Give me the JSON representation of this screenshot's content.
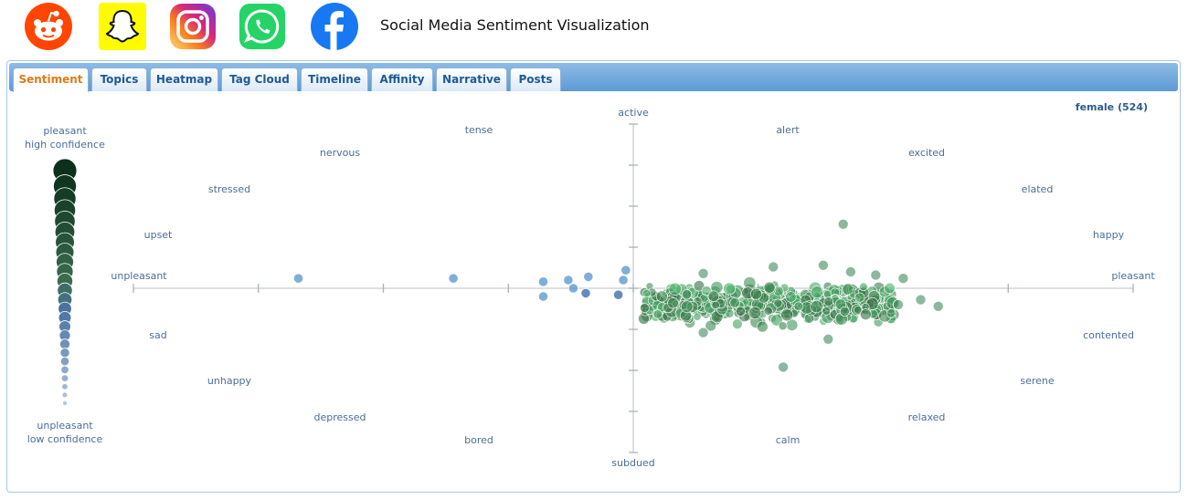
{
  "header": {
    "title": "Social Media Sentiment Visualization",
    "icons": [
      "reddit-icon",
      "snapchat-icon",
      "instagram-icon",
      "whatsapp-icon",
      "facebook-icon"
    ],
    "colors": {
      "reddit": "#ff4500",
      "snapchat": "#fffc00",
      "whatsapp": "#25d366",
      "facebook": "#1877f2"
    }
  },
  "tabs": [
    {
      "label": "Sentiment",
      "active": true
    },
    {
      "label": "Topics",
      "active": false
    },
    {
      "label": "Heatmap",
      "active": false
    },
    {
      "label": "Tag Cloud",
      "active": false
    },
    {
      "label": "Timeline",
      "active": false
    },
    {
      "label": "Affinity",
      "active": false
    },
    {
      "label": "Narrative",
      "active": false
    },
    {
      "label": "Posts",
      "active": false
    }
  ],
  "legend": {
    "top_line1": "pleasant",
    "top_line2": "high confidence",
    "bottom_line1": "unpleasant",
    "bottom_line2": "low confidence"
  },
  "group_label": "female (524)",
  "emotion_labels": {
    "active": "active",
    "alert": "alert",
    "tense": "tense",
    "nervous": "nervous",
    "excited": "excited",
    "stressed": "stressed",
    "elated": "elated",
    "upset": "upset",
    "happy": "happy",
    "unpleasant": "unpleasant",
    "pleasant": "pleasant",
    "sad": "sad",
    "contented": "contented",
    "unhappy": "unhappy",
    "serene": "serene",
    "depressed": "depressed",
    "relaxed": "relaxed",
    "bored": "bored",
    "calm": "calm",
    "subdued": "subdued"
  },
  "chart_data": {
    "type": "scatter",
    "x_axis": "valence (unpleasant to pleasant)",
    "y_axis": "arousal (subdued to active)",
    "xlim": [
      -1,
      1
    ],
    "ylim": [
      -1,
      1
    ],
    "sample_size": 524,
    "colors": {
      "positive": "#2e7d4f",
      "negative": "#4d8fcb"
    },
    "outliers": [
      {
        "x": -0.67,
        "y": 0.06,
        "c": "neg"
      },
      {
        "x": -0.36,
        "y": 0.06,
        "c": "neg"
      },
      {
        "x": -0.18,
        "y": 0.04,
        "c": "neg"
      },
      {
        "x": -0.13,
        "y": 0.05,
        "c": "neg"
      },
      {
        "x": -0.09,
        "y": 0.07,
        "c": "neg"
      },
      {
        "x": -0.18,
        "y": -0.05,
        "c": "neg"
      },
      {
        "x": -0.12,
        "y": 0.0,
        "c": "neg"
      },
      {
        "x": -0.095,
        "y": -0.03,
        "c": "neg"
      },
      {
        "x": -0.03,
        "y": -0.04,
        "c": "neg"
      },
      {
        "x": -0.015,
        "y": 0.11,
        "c": "neg"
      },
      {
        "x": -0.02,
        "y": 0.05,
        "c": "neg"
      },
      {
        "x": 0.42,
        "y": 0.39,
        "c": "pos"
      },
      {
        "x": 0.28,
        "y": 0.13,
        "c": "pos"
      },
      {
        "x": 0.38,
        "y": 0.14,
        "c": "pos"
      },
      {
        "x": 0.14,
        "y": 0.09,
        "c": "pos"
      },
      {
        "x": 0.435,
        "y": 0.1,
        "c": "pos"
      },
      {
        "x": 0.485,
        "y": 0.08,
        "c": "pos"
      },
      {
        "x": 0.54,
        "y": 0.06,
        "c": "pos"
      },
      {
        "x": 0.575,
        "y": -0.07,
        "c": "pos"
      },
      {
        "x": 0.53,
        "y": -0.1,
        "c": "pos"
      },
      {
        "x": 0.61,
        "y": -0.11,
        "c": "pos"
      },
      {
        "x": 0.3,
        "y": -0.48,
        "c": "pos"
      },
      {
        "x": 0.14,
        "y": -0.27,
        "c": "pos"
      },
      {
        "x": 0.39,
        "y": -0.31,
        "c": "pos"
      }
    ],
    "main_cluster": {
      "x_range": [
        0.02,
        0.52
      ],
      "y_range": [
        -0.24,
        0.06
      ]
    }
  }
}
